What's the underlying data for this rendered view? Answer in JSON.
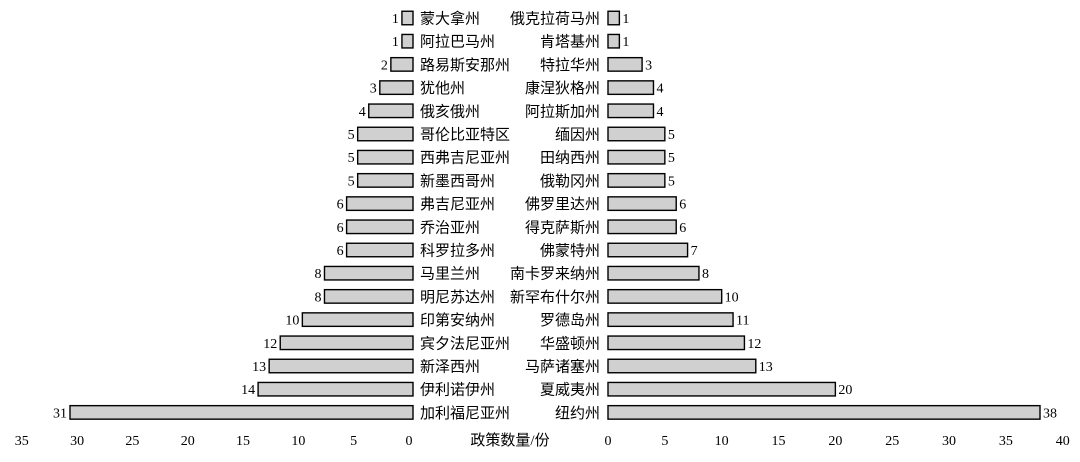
{
  "chart_data": [
    {
      "type": "bar",
      "orientation": "horizontal",
      "direction": "leftward",
      "categories": [
        "蒙大拿州",
        "阿拉巴马州",
        "路易斯安那州",
        "犹他州",
        "俄亥俄州",
        "哥伦比亚特区",
        "西弗吉尼亚州",
        "新墨西哥州",
        "弗吉尼亚州",
        "乔治亚州",
        "科罗拉多州",
        "马里兰州",
        "明尼苏达州",
        "印第安纳州",
        "宾夕法尼亚州",
        "新泽西州",
        "伊利诺伊州",
        "加利福尼亚州"
      ],
      "values": [
        1,
        1,
        2,
        3,
        4,
        5,
        5,
        5,
        6,
        6,
        6,
        8,
        8,
        10,
        12,
        13,
        14,
        31
      ],
      "xlim": [
        0,
        35
      ],
      "xticks": [
        35,
        30,
        25,
        20,
        15,
        10,
        5,
        0
      ],
      "bar_color": "#d0d0d0"
    },
    {
      "type": "bar",
      "orientation": "horizontal",
      "direction": "rightward",
      "categories": [
        "俄克拉荷马州",
        "肯塔基州",
        "特拉华州",
        "康涅狄格州",
        "阿拉斯加州",
        "缅因州",
        "田纳西州",
        "俄勒冈州",
        "佛罗里达州",
        "得克萨斯州",
        "佛蒙特州",
        "南卡罗来纳州",
        "新罕布什尔州",
        "罗德岛州",
        "华盛顿州",
        "马萨诸塞州",
        "夏威夷州",
        "纽约州"
      ],
      "values": [
        1,
        1,
        3,
        4,
        4,
        5,
        5,
        5,
        6,
        6,
        7,
        8,
        10,
        11,
        12,
        13,
        20,
        38
      ],
      "xlim": [
        0,
        40
      ],
      "xticks": [
        0,
        5,
        10,
        15,
        20,
        25,
        30,
        35,
        40
      ],
      "bar_color": "#d0d0d0"
    }
  ],
  "xlabel": "政策数量/份"
}
